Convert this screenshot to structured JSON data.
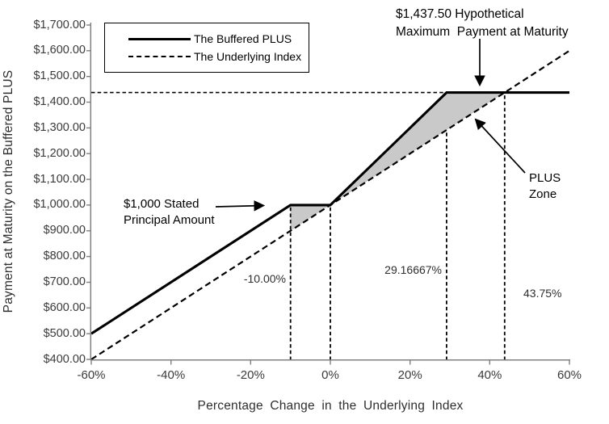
{
  "axes": {
    "xlabel": "Percentage Change in the Underlying Index",
    "ylabel": "Payment at Maturity on the Buffered PLUS"
  },
  "legend": {
    "items": [
      {
        "label": "The Buffered PLUS",
        "style": "solid"
      },
      {
        "label": "The Underlying Index",
        "style": "dashed"
      }
    ]
  },
  "annotations": {
    "max_payment": "$1,437.50 Hypothetical\nMaximum  Payment at Maturity",
    "principal": "$1,000 Stated\nPrincipal Amount",
    "plus_zone": "PLUS\nZone",
    "buffer_level_label": "-10.00%",
    "cap_index_label": "29.16667%",
    "index_at_max_label": "43.75%"
  },
  "chart_data": {
    "type": "line",
    "title": "",
    "xlabel": "Percentage Change in the Underlying Index",
    "ylabel": "Payment at Maturity on the Buffered PLUS",
    "xlim": [
      -60,
      60
    ],
    "ylim": [
      400,
      1700
    ],
    "grid": false,
    "legend_position": "top-left-inside",
    "x_ticks": [
      {
        "value": -60,
        "label": "-60%"
      },
      {
        "value": -40,
        "label": "-40%"
      },
      {
        "value": -20,
        "label": "-20%"
      },
      {
        "value": 0,
        "label": "0%"
      },
      {
        "value": 20,
        "label": "20%"
      },
      {
        "value": 40,
        "label": "40%"
      },
      {
        "value": 60,
        "label": "60%"
      }
    ],
    "y_ticks": [
      {
        "value": 400,
        "label": "$400.00"
      },
      {
        "value": 500,
        "label": "$500.00"
      },
      {
        "value": 600,
        "label": "$600.00"
      },
      {
        "value": 700,
        "label": "$700.00"
      },
      {
        "value": 800,
        "label": "$800.00"
      },
      {
        "value": 900,
        "label": "$900.00"
      },
      {
        "value": 1000,
        "label": "$1,000.00"
      },
      {
        "value": 1100,
        "label": "$1,100.00"
      },
      {
        "value": 1200,
        "label": "$1,200.00"
      },
      {
        "value": 1300,
        "label": "$1,300.00"
      },
      {
        "value": 1400,
        "label": "$1,400.00"
      },
      {
        "value": 1500,
        "label": "$1,500.00"
      },
      {
        "value": 1600,
        "label": "$1,600.00"
      },
      {
        "value": 1700,
        "label": "$1,700.00"
      }
    ],
    "series": [
      {
        "name": "The Buffered PLUS",
        "line": "solid",
        "points": [
          [
            -60,
            500
          ],
          [
            -10,
            1000
          ],
          [
            0,
            1000
          ],
          [
            29.16667,
            1437.5
          ],
          [
            60,
            1437.5
          ]
        ]
      },
      {
        "name": "The Underlying Index",
        "line": "dashed",
        "points": [
          [
            -60,
            400
          ],
          [
            60,
            1600
          ]
        ]
      }
    ],
    "shaded_regions": [
      {
        "name": "buffer-zone-triangle",
        "points": [
          [
            -10,
            1000
          ],
          [
            0,
            1000
          ],
          [
            -10,
            900
          ]
        ]
      },
      {
        "name": "plus-zone-region",
        "points": [
          [
            0,
            1000
          ],
          [
            29.16667,
            1437.5
          ],
          [
            43.75,
            1437.5
          ]
        ]
      }
    ],
    "reference_lines": {
      "horizontal": [
        {
          "value": 1437.5,
          "from_x": -60,
          "to_x": 29.16667
        }
      ],
      "vertical": [
        {
          "x": -10,
          "top_value": 1000
        },
        {
          "x": 0,
          "top_value": 1000
        },
        {
          "x": 29.16667,
          "top_value": 1291.667
        },
        {
          "x": 43.75,
          "top_value": 1437.5
        }
      ]
    },
    "key_values": {
      "stated_principal": 1000,
      "hypothetical_maximum_payment": 1437.5,
      "buffer_pct": -10.0,
      "index_pct_at_cap_via_leverage": 29.16667,
      "index_pct_at_max_payment": 43.75
    },
    "colors": {
      "line": "#000000",
      "shade": "#c9c9c9",
      "axis": "#808080",
      "tick_text": "#3a3a3a"
    }
  }
}
